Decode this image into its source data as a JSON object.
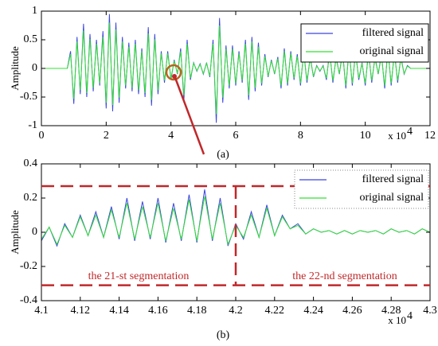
{
  "chart_data": [
    {
      "type": "line",
      "label": "(a)",
      "ylabel": "Amplitude",
      "x_multiplier": {
        "base": "x 10",
        "exponent": "4"
      },
      "xlim": [
        0,
        12
      ],
      "xticks": [
        0,
        2,
        4,
        6,
        8,
        10,
        12
      ],
      "ylim": [
        -1,
        1
      ],
      "yticks": [
        -1,
        -0.5,
        0,
        0.5,
        1
      ],
      "legend": "upper right",
      "x": [
        0,
        0.1,
        0.2,
        0.3,
        0.4,
        0.5,
        0.6,
        0.7,
        0.8,
        0.9,
        1,
        1.1,
        1.2,
        1.3,
        1.4,
        1.5,
        1.6,
        1.7,
        1.8,
        1.9,
        2,
        2.1,
        2.2,
        2.3,
        2.4,
        2.5,
        2.6,
        2.7,
        2.8,
        2.9,
        3,
        3.1,
        3.2,
        3.3,
        3.4,
        3.5,
        3.6,
        3.7,
        3.8,
        3.9,
        4,
        4.1,
        4.2,
        4.3,
        4.4,
        4.5,
        4.6,
        4.7,
        4.8,
        4.9,
        5,
        5.1,
        5.2,
        5.3,
        5.4,
        5.5,
        5.6,
        5.7,
        5.8,
        5.9,
        6,
        6.1,
        6.2,
        6.3,
        6.4,
        6.5,
        6.6,
        6.7,
        6.8,
        6.9,
        7,
        7.1,
        7.2,
        7.3,
        7.4,
        7.5,
        7.6,
        7.7,
        7.8,
        7.9,
        8,
        8.1,
        8.2,
        8.3,
        8.4,
        8.5,
        8.6,
        8.7,
        8.8,
        8.9,
        9,
        9.1,
        9.2,
        9.3,
        9.4,
        9.5,
        9.6,
        9.7,
        9.8,
        9.9,
        10,
        10.1,
        10.2,
        10.3,
        10.4,
        10.5,
        10.6,
        10.7,
        10.8,
        10.9,
        11,
        11.1,
        11.2,
        11.3,
        11.4,
        11.5,
        11.6,
        11.7,
        11.8,
        11.9,
        12
      ],
      "series": [
        {
          "name": "filtered signal",
          "color": "#3b46e0",
          "values": [
            0,
            0,
            0,
            0,
            0,
            0,
            0,
            0,
            0,
            0.3,
            -0.62,
            0.55,
            -0.45,
            0.78,
            -0.5,
            0.6,
            -0.4,
            0.5,
            -0.3,
            0.65,
            -0.7,
            0.95,
            -0.75,
            0.8,
            -0.6,
            0.55,
            -0.35,
            0.45,
            -0.4,
            0.5,
            -0.45,
            0.35,
            -0.5,
            0.72,
            -0.65,
            0.6,
            -0.45,
            0.3,
            -0.25,
            0.3,
            -0.2,
            0.15,
            -0.1,
            0.35,
            -0.55,
            0.5,
            -0.2,
            0.1,
            -0.05,
            0.08,
            -0.1,
            0.1,
            -0.15,
            0.5,
            -0.95,
            0.88,
            -0.6,
            0.4,
            -0.35,
            0.4,
            -0.3,
            0.3,
            -0.25,
            0.5,
            -0.55,
            0.55,
            -0.4,
            0.45,
            -0.3,
            0.25,
            -0.15,
            0.15,
            -0.1,
            0.2,
            -0.35,
            0.35,
            -0.3,
            0.3,
            -0.2,
            0.25,
            -0.3,
            0.3,
            -0.25,
            0.2,
            -0.15,
            0.05,
            -0.05,
            0.05,
            -0.2,
            0.3,
            -0.25,
            0.2,
            -0.1,
            0.3,
            -0.35,
            0.35,
            -0.3,
            0.3,
            -0.2,
            0.1,
            -0.3,
            0.3,
            -0.25,
            0.2,
            -0.1,
            0.25,
            -0.35,
            0.35,
            -0.3,
            0.3,
            -0.25,
            0.2,
            -0.1,
            0.05,
            0,
            0,
            0,
            0,
            0,
            0,
            0
          ]
        },
        {
          "name": "original signal",
          "color": "#33e033",
          "values": [
            0,
            0,
            0,
            0,
            0,
            0,
            0,
            0,
            0,
            0.25,
            -0.53,
            0.47,
            -0.38,
            0.66,
            -0.43,
            0.51,
            -0.34,
            0.43,
            -0.26,
            0.55,
            -0.6,
            0.8,
            -0.64,
            0.68,
            -0.51,
            0.47,
            -0.3,
            0.38,
            -0.34,
            0.43,
            -0.38,
            0.3,
            -0.43,
            0.61,
            -0.55,
            0.51,
            -0.38,
            0.26,
            -0.21,
            0.26,
            -0.17,
            0.13,
            -0.09,
            0.3,
            -0.47,
            0.43,
            -0.17,
            0.09,
            -0.04,
            0.07,
            -0.09,
            0.09,
            -0.13,
            0.43,
            -0.8,
            0.75,
            -0.51,
            0.34,
            -0.3,
            0.34,
            -0.26,
            0.26,
            -0.21,
            0.43,
            -0.47,
            0.47,
            -0.34,
            0.38,
            -0.26,
            0.21,
            -0.13,
            0.13,
            -0.09,
            0.17,
            -0.3,
            0.3,
            -0.26,
            0.26,
            -0.17,
            0.21,
            -0.26,
            0.26,
            -0.21,
            0.17,
            -0.13,
            0.04,
            -0.04,
            0.04,
            -0.17,
            0.26,
            -0.21,
            0.17,
            -0.09,
            0.26,
            -0.3,
            0.3,
            -0.26,
            0.26,
            -0.17,
            0.09,
            -0.26,
            0.26,
            -0.21,
            0.17,
            -0.09,
            0.21,
            -0.3,
            0.3,
            -0.26,
            0.26,
            -0.21,
            0.17,
            -0.09,
            0.04,
            0,
            0,
            0,
            0,
            0,
            0,
            0
          ]
        }
      ]
    },
    {
      "type": "line",
      "label": "(b)",
      "ylabel": "Amplitude",
      "x_multiplier": {
        "base": "x 10",
        "exponent": "4"
      },
      "xlim": [
        4.1,
        4.3
      ],
      "xticks": [
        4.1,
        4.12,
        4.14,
        4.16,
        4.18,
        4.2,
        4.22,
        4.24,
        4.26,
        4.28,
        4.3
      ],
      "ylim": [
        -0.4,
        0.4
      ],
      "yticks": [
        -0.4,
        -0.2,
        0,
        0.2,
        0.4
      ],
      "legend": "upper right",
      "hlines": [
        0.27,
        -0.31
      ],
      "vline": 4.2,
      "line_color": "#c0282a",
      "annotations": [
        "the 21-st segmentation",
        "the 22-nd segmentation"
      ],
      "x": [
        4.1,
        4.104,
        4.108,
        4.112,
        4.116,
        4.12,
        4.124,
        4.128,
        4.132,
        4.136,
        4.14,
        4.144,
        4.148,
        4.152,
        4.156,
        4.16,
        4.164,
        4.168,
        4.172,
        4.176,
        4.18,
        4.184,
        4.188,
        4.192,
        4.196,
        4.2,
        4.204,
        4.208,
        4.212,
        4.216,
        4.22,
        4.224,
        4.228,
        4.232,
        4.236,
        4.24,
        4.244,
        4.248,
        4.252,
        4.256,
        4.26,
        4.264,
        4.268,
        4.272,
        4.276,
        4.28,
        4.284,
        4.288,
        4.292,
        4.296,
        4.3
      ],
      "series": [
        {
          "name": "filtered signal",
          "color": "#3b46e0",
          "values": [
            -0.05,
            0.03,
            -0.08,
            0.05,
            -0.03,
            0.1,
            -0.02,
            0.12,
            -0.03,
            0.15,
            -0.04,
            0.2,
            -0.05,
            0.18,
            -0.04,
            0.2,
            -0.06,
            0.17,
            -0.05,
            0.22,
            -0.06,
            0.25,
            -0.05,
            0.2,
            -0.08,
            0.05,
            -0.04,
            0.12,
            -0.03,
            0.16,
            -0.02,
            0.1,
            0.02,
            0.05,
            -0.01,
            0.02,
            0,
            0.01,
            -0.01,
            0.01,
            -0.01,
            0.01,
            0,
            0.01,
            -0.01,
            0.02,
            0,
            0.01,
            -0.01,
            0.02,
            0
          ]
        },
        {
          "name": "original signal",
          "color": "#33e033",
          "values": [
            -0.04,
            0.03,
            -0.07,
            0.04,
            -0.03,
            0.09,
            -0.02,
            0.1,
            -0.03,
            0.13,
            -0.03,
            0.17,
            -0.04,
            0.15,
            -0.03,
            0.17,
            -0.05,
            0.14,
            -0.04,
            0.19,
            -0.05,
            0.21,
            -0.04,
            0.17,
            -0.07,
            0.04,
            -0.03,
            0.1,
            -0.03,
            0.14,
            -0.02,
            0.09,
            0.02,
            0.04,
            -0.01,
            0.02,
            0,
            0.01,
            -0.01,
            0.01,
            -0.01,
            0.01,
            0,
            0.01,
            -0.01,
            0.02,
            0,
            0.01,
            -0.01,
            0.02,
            0
          ]
        }
      ]
    }
  ]
}
